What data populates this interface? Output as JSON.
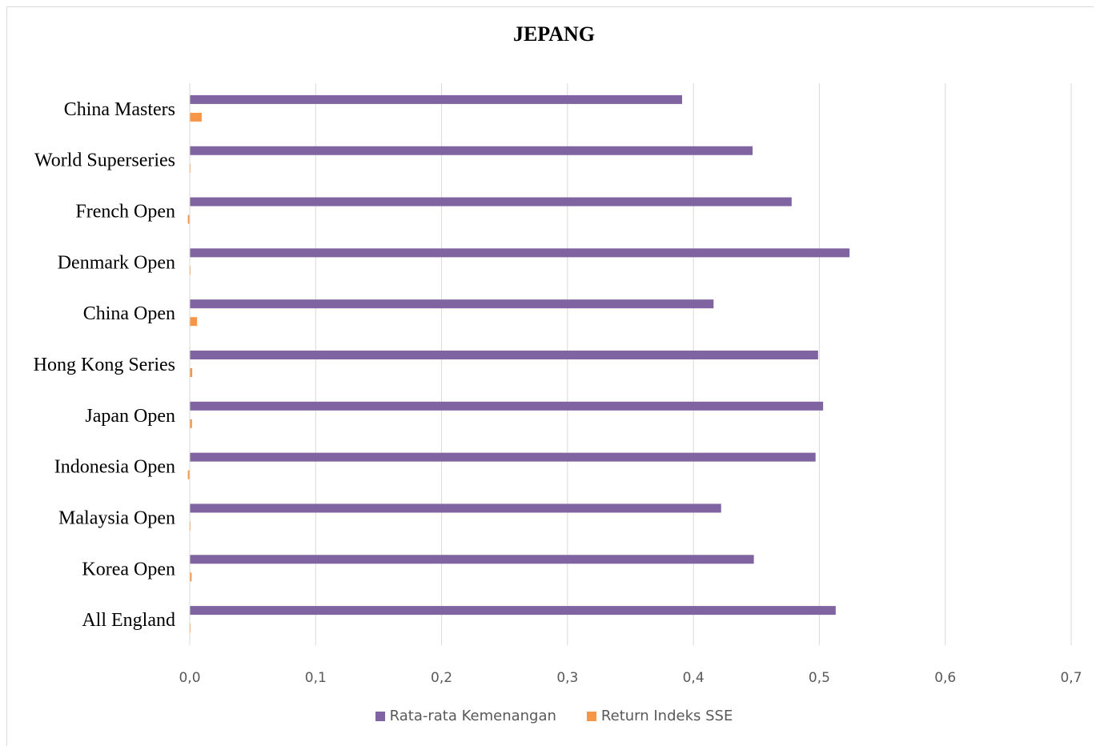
{
  "chart_data": {
    "type": "bar",
    "orientation": "horizontal",
    "title": "JEPANG",
    "categories": [
      "China Masters",
      "World Superseries",
      "French Open",
      "Denmark Open",
      "China Open",
      "Hong Kong Series",
      "Japan Open",
      "Indonesia Open",
      "Malaysia Open",
      "Korea Open",
      "All England"
    ],
    "series": [
      {
        "name": "Rata-rata Kemenangan",
        "color": "#8064a2",
        "values": [
          0.391,
          0.447,
          0.478,
          0.524,
          0.416,
          0.499,
          0.503,
          0.497,
          0.422,
          0.448,
          0.513
        ]
      },
      {
        "name": "Return Indeks SSE",
        "color": "#f79646",
        "values": [
          0.0095,
          0.0004,
          -0.0015,
          0.0003,
          0.0058,
          0.002,
          0.0018,
          -0.0015,
          0.0002,
          0.0015,
          0.0005
        ]
      }
    ],
    "xlim": [
      0.0,
      0.7
    ],
    "xticks": [
      "0,0",
      "0,1",
      "0,2",
      "0,3",
      "0,4",
      "0,5",
      "0,6",
      "0,7"
    ],
    "xtick_values": [
      0.0,
      0.1,
      0.2,
      0.3,
      0.4,
      0.5,
      0.6,
      0.7
    ],
    "grid": true,
    "legend_position": "bottom"
  }
}
